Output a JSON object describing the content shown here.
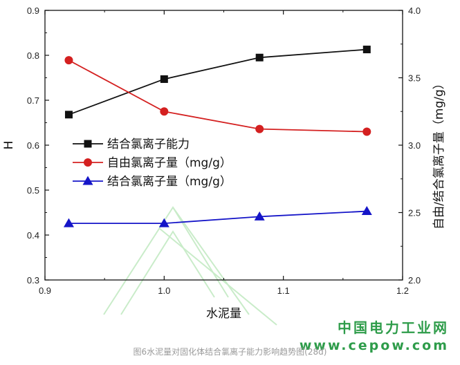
{
  "chart_data": {
    "type": "line",
    "xlabel": "水泥量",
    "ylabel_left": "H",
    "ylabel_right": "自由/结合氯离子量（mg/g）",
    "xlim": [
      0.9,
      1.2
    ],
    "ylim_left": [
      0.3,
      0.9
    ],
    "ylim_right": [
      2.0,
      4.0
    ],
    "x_ticks": [
      "0.9",
      "1.0",
      "1.1",
      "1.2"
    ],
    "y_left_ticks": [
      "0.3",
      "0.4",
      "0.5",
      "0.6",
      "0.7",
      "0.8",
      "0.9"
    ],
    "y_right_ticks": [
      "2.0",
      "2.5",
      "3.0",
      "3.5",
      "4.0"
    ],
    "x": [
      0.92,
      1.0,
      1.08,
      1.17
    ],
    "series": [
      {
        "name": "结合氯离子能力",
        "axis": "left",
        "color": "#111111",
        "marker": "square",
        "values": [
          0.668,
          0.747,
          0.795,
          0.813
        ]
      },
      {
        "name": "自由氯离子量（mg/g）",
        "axis": "right",
        "color": "#d42020",
        "marker": "circle",
        "values": [
          3.63,
          3.25,
          3.12,
          3.1
        ]
      },
      {
        "name": "结合氯离子量（mg/g）",
        "axis": "right",
        "color": "#1515c8",
        "marker": "triangle",
        "values": [
          2.42,
          2.42,
          2.47,
          2.51
        ]
      }
    ],
    "legend_position": "center-left",
    "grid": false
  },
  "watermark": {
    "name_cn": "中国电力工业网",
    "url": "www.cepow.com"
  },
  "caption": "图6水泥量对固化体结合氯离子能力影响趋势图(28d)"
}
